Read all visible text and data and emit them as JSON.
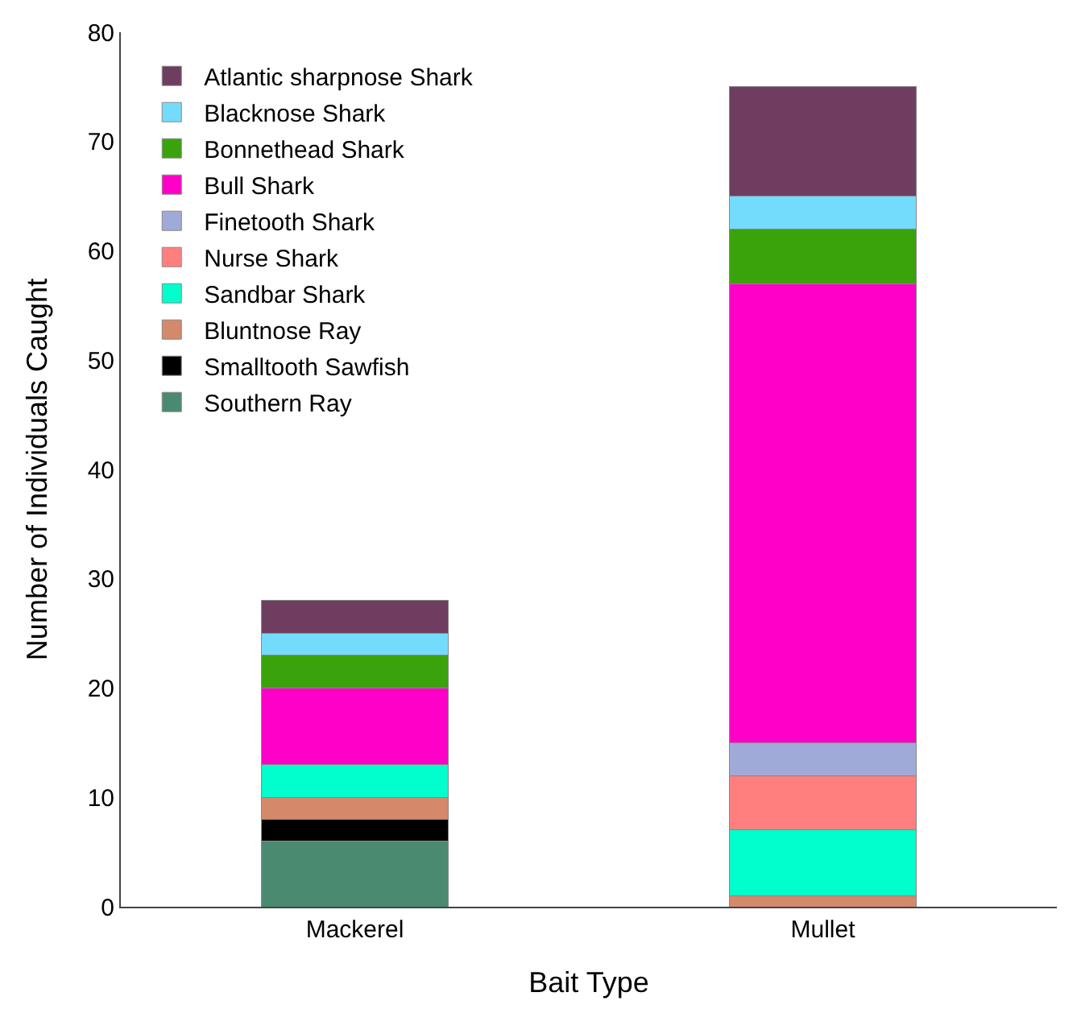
{
  "chart_data": {
    "type": "bar",
    "stacked": true,
    "xlabel": "Bait Type",
    "ylabel": "Number of Individuals Caught",
    "categories": [
      "Mackerel",
      "Mullet"
    ],
    "ylim": [
      0,
      80
    ],
    "yticks": [
      0,
      10,
      20,
      30,
      40,
      50,
      60,
      70,
      80
    ],
    "grid": false,
    "legend": "top left",
    "series": [
      {
        "name": "Southern Ray",
        "color": "#4a8a70",
        "values": [
          6,
          0
        ]
      },
      {
        "name": "Smalltooth Sawfish",
        "color": "#000000",
        "values": [
          2,
          0
        ]
      },
      {
        "name": "Bluntnose Ray",
        "color": "#d4896a",
        "values": [
          2,
          1
        ]
      },
      {
        "name": "Sandbar Shark",
        "color": "#00ffcc",
        "values": [
          3,
          6
        ]
      },
      {
        "name": "Nurse Shark",
        "color": "#ff7f7f",
        "values": [
          0,
          5
        ]
      },
      {
        "name": "Finetooth Shark",
        "color": "#a0aad8",
        "values": [
          0,
          3
        ]
      },
      {
        "name": "Bull Shark",
        "color": "#ff00c8",
        "values": [
          7,
          42
        ]
      },
      {
        "name": "Bonnethead Shark",
        "color": "#3aa30b",
        "values": [
          3,
          5
        ]
      },
      {
        "name": "Blacknose Shark",
        "color": "#73dcfd",
        "values": [
          2,
          3
        ]
      },
      {
        "name": "Atlantic sharpnose Shark",
        "color": "#6f3d60",
        "values": [
          3,
          10
        ]
      }
    ]
  }
}
